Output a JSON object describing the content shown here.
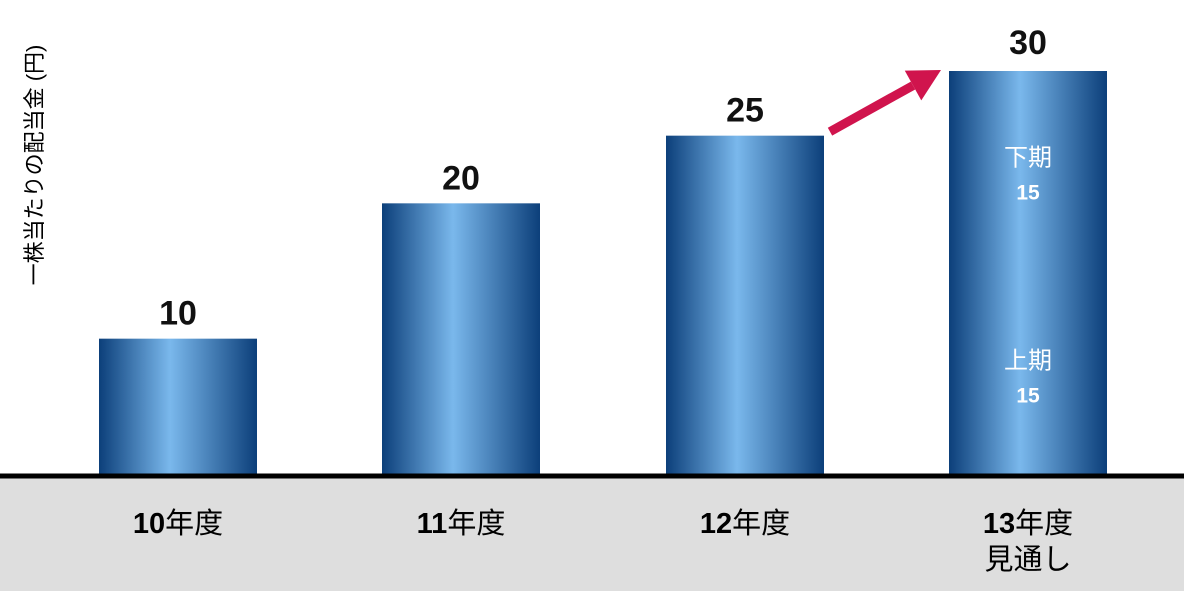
{
  "chart_data": {
    "type": "bar",
    "ylabel": "一株当たりの配当金 (円)",
    "categories": [
      {
        "num": "10",
        "suffix": "年度",
        "sub": ""
      },
      {
        "num": "11",
        "suffix": "年度",
        "sub": ""
      },
      {
        "num": "12",
        "suffix": "年度",
        "sub": ""
      },
      {
        "num": "13",
        "suffix": "年度",
        "sub": "見通し"
      }
    ],
    "values": [
      10,
      20,
      25,
      30
    ],
    "value_labels": [
      "10",
      "20",
      "25",
      "30"
    ],
    "stacked_last": [
      {
        "label": "上期",
        "value": 15,
        "value_label": "15"
      },
      {
        "label": "下期",
        "value": 15,
        "value_label": "15"
      }
    ],
    "ylim": [
      0,
      30
    ],
    "grid": false,
    "arrow": "from 12年度 bar to 13年度 bar",
    "colors": {
      "bar_dark": "#0c3f7a",
      "bar_light": "#7ab8ec",
      "arrow": "#d0144d",
      "axis_band": "#dedede",
      "baseline": "#000000"
    }
  }
}
